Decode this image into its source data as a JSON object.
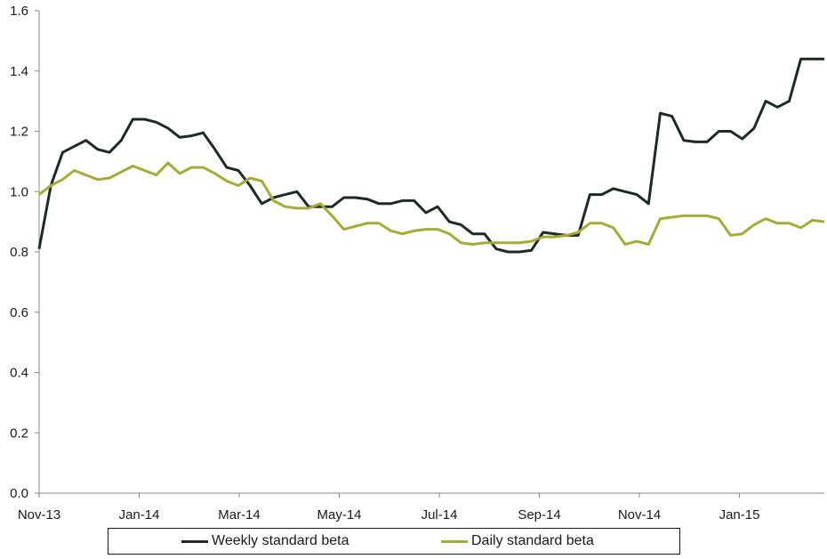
{
  "chart_data": {
    "type": "line",
    "title": "",
    "xlabel": "",
    "ylabel": "",
    "ylim": [
      0,
      1.6
    ],
    "yticks": [
      "0.0",
      "0.2",
      "0.4",
      "0.6",
      "0.8",
      "1.0",
      "1.2",
      "1.4",
      "1.6"
    ],
    "xticks": [
      "Nov-13",
      "Jan-14",
      "Mar-14",
      "May-14",
      "Jul-14",
      "Sep-14",
      "Nov-14",
      "Jan-15"
    ],
    "x_index_range": [
      0,
      79
    ],
    "grid": false,
    "legend": "bottom",
    "series": [
      {
        "name": "Weekly standard beta",
        "color": "#1f2b22",
        "values": [
          0.81,
          1.02,
          1.13,
          1.15,
          1.17,
          1.14,
          1.13,
          1.17,
          1.24,
          1.24,
          1.23,
          1.21,
          1.18,
          1.185,
          1.195,
          1.14,
          1.08,
          1.07,
          1.02,
          0.96,
          0.98,
          0.99,
          1.0,
          0.95,
          0.95,
          0.95,
          0.98,
          0.98,
          0.975,
          0.96,
          0.96,
          0.97,
          0.97,
          0.93,
          0.95,
          0.9,
          0.89,
          0.86,
          0.86,
          0.81,
          0.8,
          0.8,
          0.805,
          0.865,
          0.86,
          0.855,
          0.855,
          0.99,
          0.99,
          1.01,
          1.0,
          0.99,
          0.96,
          1.26,
          1.25,
          1.17,
          1.165,
          1.165,
          1.2,
          1.2,
          1.175,
          1.21,
          1.3,
          1.28,
          1.3,
          1.44,
          1.44,
          1.44
        ]
      },
      {
        "name": "Daily standard beta",
        "color": "#a3ad36",
        "values": [
          0.99,
          1.02,
          1.04,
          1.07,
          1.055,
          1.04,
          1.045,
          1.065,
          1.085,
          1.07,
          1.055,
          1.095,
          1.06,
          1.08,
          1.08,
          1.06,
          1.035,
          1.02,
          1.045,
          1.035,
          0.97,
          0.95,
          0.945,
          0.945,
          0.96,
          0.92,
          0.875,
          0.885,
          0.895,
          0.895,
          0.87,
          0.86,
          0.87,
          0.875,
          0.875,
          0.86,
          0.83,
          0.825,
          0.83,
          0.83,
          0.83,
          0.83,
          0.835,
          0.85,
          0.85,
          0.855,
          0.865,
          0.895,
          0.895,
          0.88,
          0.825,
          0.835,
          0.825,
          0.91,
          0.915,
          0.92,
          0.92,
          0.92,
          0.91,
          0.855,
          0.86,
          0.89,
          0.91,
          0.895,
          0.895,
          0.88,
          0.905,
          0.9
        ]
      }
    ]
  },
  "legend": {
    "weekly_label": "Weekly standard beta",
    "daily_label": "Daily standard beta"
  }
}
